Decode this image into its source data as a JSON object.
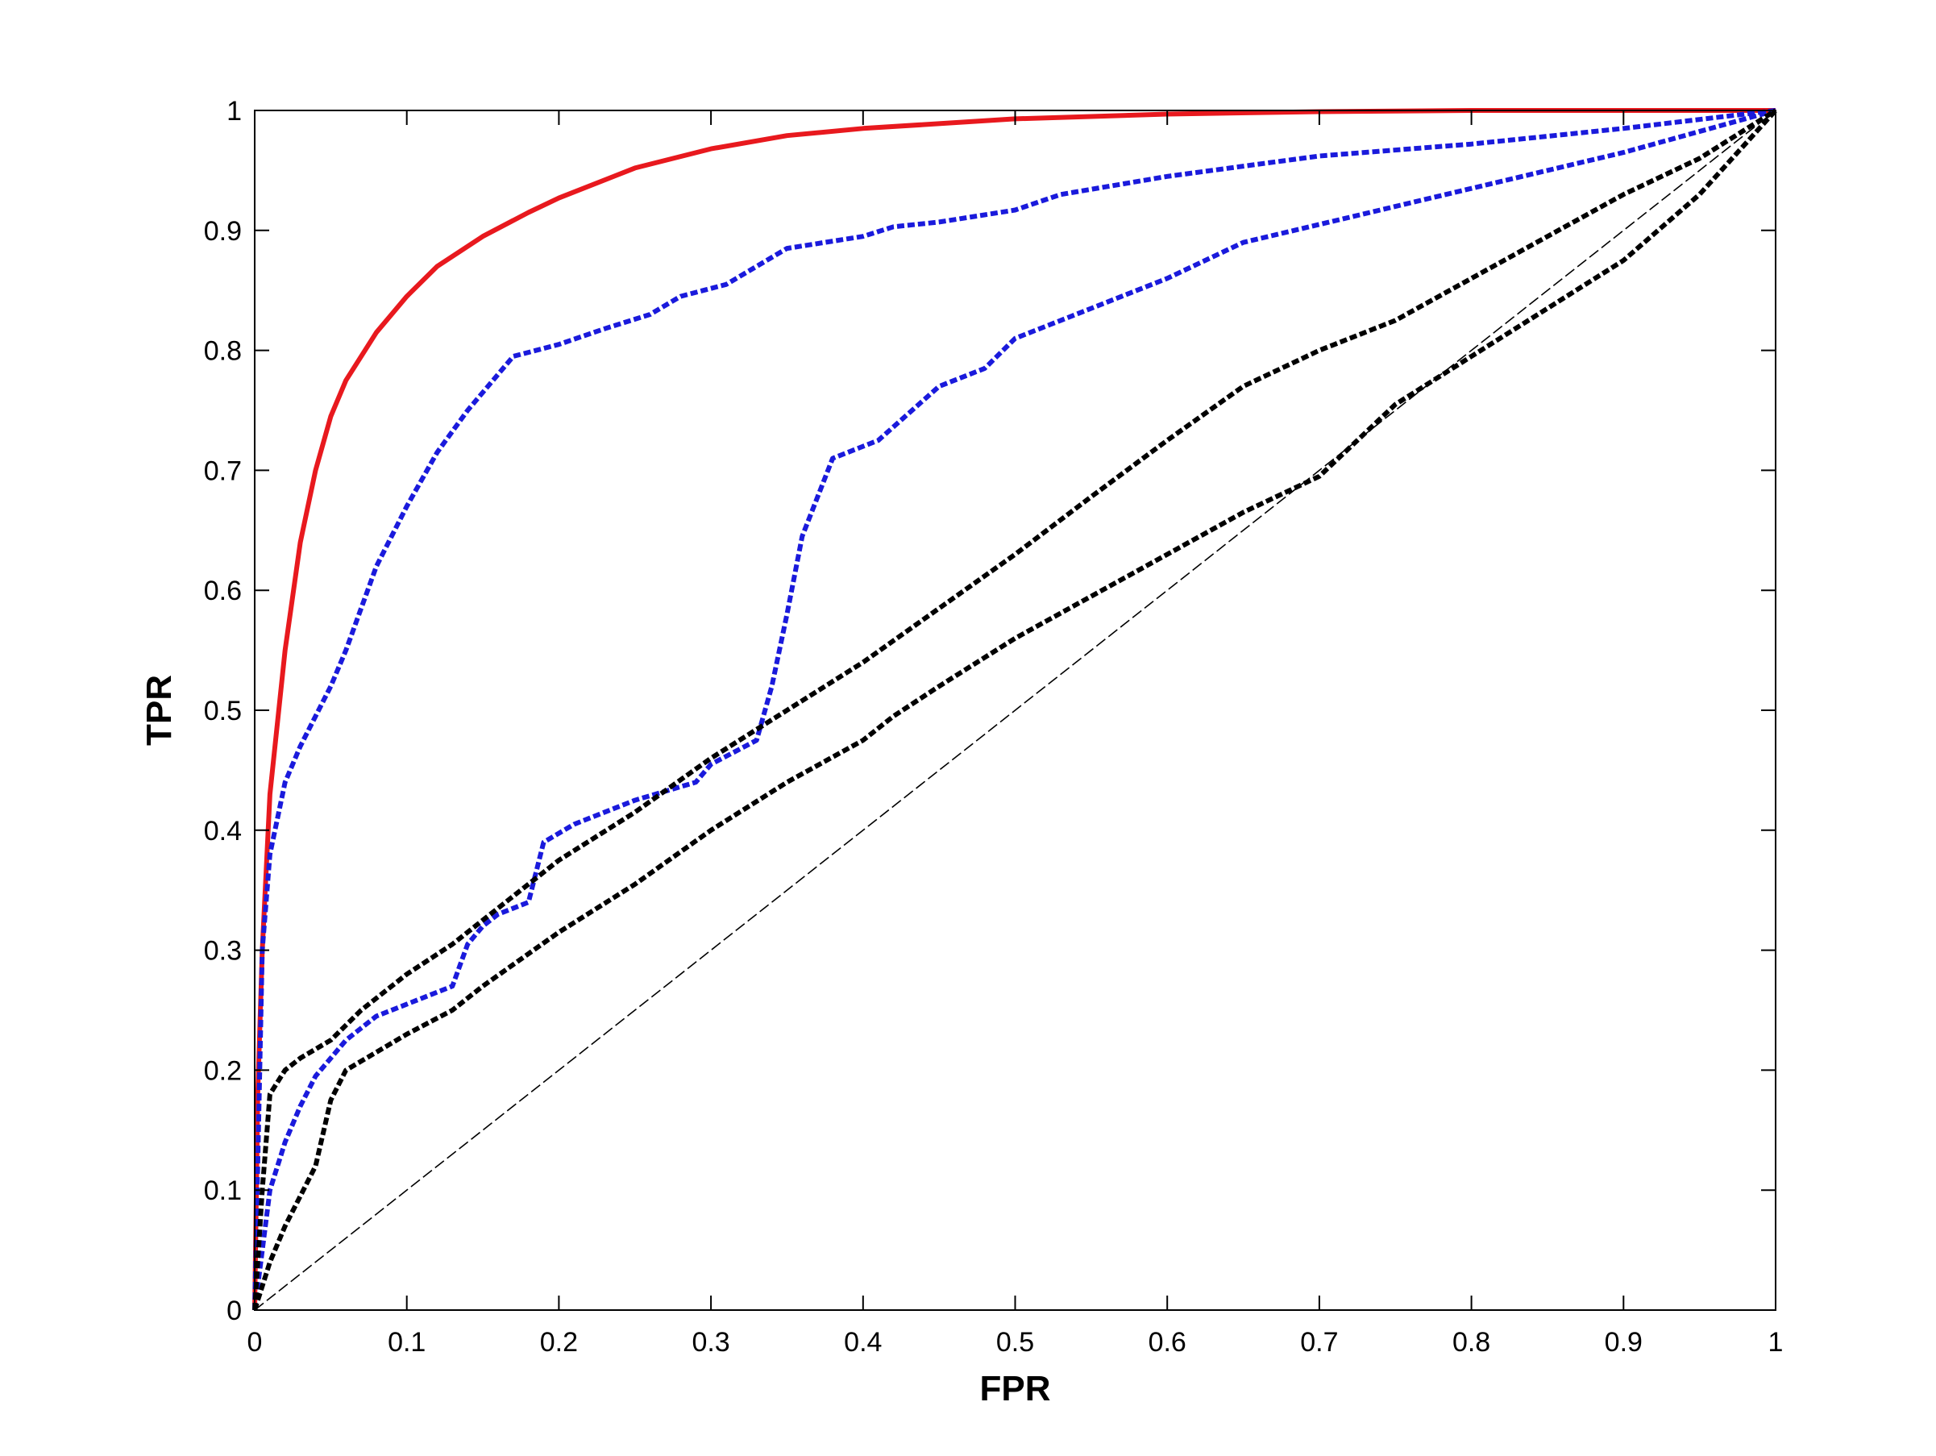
{
  "chart_data": {
    "type": "line",
    "title": "",
    "xlabel": "FPR",
    "ylabel": "TPR",
    "xlim": [
      0,
      1
    ],
    "ylim": [
      0,
      1
    ],
    "grid": false,
    "legend": "none",
    "xticks": [
      "0",
      "0.1",
      "0.2",
      "0.3",
      "0.4",
      "0.5",
      "0.6",
      "0.7",
      "0.8",
      "0.9",
      "1"
    ],
    "yticks": [
      "0",
      "0.1",
      "0.2",
      "0.3",
      "0.4",
      "0.5",
      "0.6",
      "0.7",
      "0.8",
      "0.9",
      "1"
    ],
    "series": [
      {
        "color": "#e8191e",
        "line_style": "solid",
        "x": [
          0,
          0.002,
          0.005,
          0.01,
          0.02,
          0.03,
          0.04,
          0.05,
          0.06,
          0.08,
          0.1,
          0.12,
          0.15,
          0.18,
          0.2,
          0.25,
          0.3,
          0.35,
          0.4,
          0.5,
          0.6,
          0.7,
          0.8,
          0.9,
          1.0
        ],
        "y": [
          0,
          0.18,
          0.3,
          0.43,
          0.55,
          0.64,
          0.7,
          0.745,
          0.775,
          0.815,
          0.845,
          0.87,
          0.895,
          0.915,
          0.927,
          0.952,
          0.968,
          0.979,
          0.985,
          0.993,
          0.997,
          0.999,
          1.0,
          1.0,
          1.0
        ]
      },
      {
        "color": "#1a1adc",
        "line_style": "dashed",
        "x": [
          0,
          0.005,
          0.01,
          0.02,
          0.03,
          0.05,
          0.06,
          0.08,
          0.1,
          0.12,
          0.14,
          0.17,
          0.2,
          0.23,
          0.26,
          0.28,
          0.31,
          0.35,
          0.4,
          0.42,
          0.45,
          0.5,
          0.53,
          0.6,
          0.7,
          0.8,
          0.9,
          1.0
        ],
        "y": [
          0,
          0.3,
          0.38,
          0.44,
          0.47,
          0.52,
          0.55,
          0.62,
          0.67,
          0.715,
          0.75,
          0.795,
          0.805,
          0.818,
          0.83,
          0.845,
          0.855,
          0.885,
          0.895,
          0.903,
          0.907,
          0.917,
          0.93,
          0.945,
          0.962,
          0.972,
          0.985,
          1.0
        ]
      },
      {
        "color": "#1a1adc",
        "line_style": "dashed",
        "x": [
          0,
          0.01,
          0.02,
          0.03,
          0.04,
          0.05,
          0.06,
          0.07,
          0.08,
          0.1,
          0.13,
          0.14,
          0.15,
          0.16,
          0.18,
          0.19,
          0.21,
          0.25,
          0.29,
          0.3,
          0.33,
          0.34,
          0.35,
          0.36,
          0.38,
          0.41,
          0.45,
          0.48,
          0.5,
          0.53,
          0.6,
          0.65,
          0.7,
          0.8,
          0.9,
          1.0
        ],
        "y": [
          0,
          0.1,
          0.14,
          0.17,
          0.195,
          0.21,
          0.225,
          0.235,
          0.245,
          0.255,
          0.27,
          0.305,
          0.32,
          0.33,
          0.34,
          0.39,
          0.405,
          0.425,
          0.44,
          0.455,
          0.475,
          0.52,
          0.58,
          0.645,
          0.71,
          0.725,
          0.77,
          0.785,
          0.81,
          0.825,
          0.86,
          0.89,
          0.905,
          0.935,
          0.965,
          1.0
        ]
      },
      {
        "color": "#000000",
        "line_style": "dashed",
        "x": [
          0,
          0.005,
          0.01,
          0.02,
          0.03,
          0.05,
          0.07,
          0.1,
          0.13,
          0.15,
          0.2,
          0.25,
          0.3,
          0.35,
          0.4,
          0.45,
          0.5,
          0.55,
          0.6,
          0.65,
          0.7,
          0.75,
          0.8,
          0.85,
          0.9,
          0.95,
          1.0
        ],
        "y": [
          0,
          0.1,
          0.18,
          0.2,
          0.21,
          0.225,
          0.25,
          0.28,
          0.305,
          0.325,
          0.375,
          0.415,
          0.46,
          0.5,
          0.54,
          0.585,
          0.63,
          0.678,
          0.725,
          0.77,
          0.8,
          0.825,
          0.86,
          0.895,
          0.93,
          0.96,
          1.0
        ]
      },
      {
        "color": "#000000",
        "line_style": "dashed",
        "x": [
          0,
          0.01,
          0.02,
          0.03,
          0.04,
          0.05,
          0.06,
          0.08,
          0.1,
          0.13,
          0.15,
          0.2,
          0.25,
          0.3,
          0.35,
          0.4,
          0.42,
          0.45,
          0.5,
          0.55,
          0.6,
          0.65,
          0.7,
          0.75,
          0.8,
          0.85,
          0.9,
          0.95,
          1.0
        ],
        "y": [
          0,
          0.04,
          0.07,
          0.095,
          0.12,
          0.175,
          0.2,
          0.215,
          0.23,
          0.25,
          0.27,
          0.315,
          0.355,
          0.4,
          0.44,
          0.475,
          0.495,
          0.52,
          0.56,
          0.595,
          0.63,
          0.665,
          0.695,
          0.755,
          0.795,
          0.835,
          0.875,
          0.93,
          1.0
        ]
      },
      {
        "color": "#000000",
        "line_style": "thin-dashed",
        "x": [
          0,
          1
        ],
        "y": [
          0,
          1
        ]
      }
    ]
  }
}
